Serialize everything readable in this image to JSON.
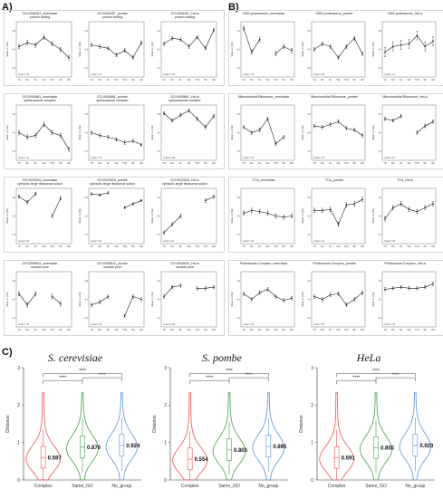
{
  "labels": {
    "a": "A)",
    "b": "B)",
    "c": "C)"
  },
  "panel_a_groups": [
    {
      "charts": [
        {
          "title": [
            "GO:0006457_cerevisiae",
            "protein folding"
          ],
          "n": "model = 33",
          "values": [
            0.55,
            0.62,
            0.58,
            0.72,
            0.6,
            0.5,
            0.35
          ],
          "err": [
            0.04,
            0.04,
            0.04,
            0.04,
            0.04,
            0.04,
            0.04
          ]
        },
        {
          "title": [
            "GO:0006457_pombe",
            "protein folding"
          ],
          "n": "model = 74",
          "values": [
            0.58,
            0.55,
            0.52,
            0.4,
            0.48,
            0.35,
            0.62
          ],
          "err": [
            0.03,
            0.03,
            0.03,
            0.03,
            0.03,
            0.03,
            0.03
          ]
        },
        {
          "title": [
            "GO:0006457_HeLa",
            "protein folding"
          ],
          "n": "model = 103",
          "values": [
            0.6,
            0.7,
            0.68,
            0.55,
            0.72,
            0.52,
            0.85
          ],
          "err": [
            0.03,
            0.03,
            0.03,
            0.03,
            0.03,
            0.03,
            0.03
          ]
        }
      ]
    },
    {
      "charts": [
        {
          "title": [
            "GO:0005681_cerevisiae",
            "spliceosomal complex"
          ],
          "n": "model = 44",
          "values": [
            0.5,
            0.42,
            0.45,
            0.65,
            0.5,
            0.45,
            0.2
          ],
          "err": [
            0.04,
            0.04,
            0.04,
            0.04,
            0.04,
            0.04,
            0.04
          ]
        },
        {
          "title": [
            "GO:0005681_pombe",
            "spliceosomal complex"
          ],
          "n": "model = 79",
          "values": [
            0.5,
            0.45,
            0.42,
            0.38,
            0.32,
            0.35,
            0.28
          ],
          "err": [
            0.03,
            0.03,
            0.03,
            0.03,
            0.03,
            0.03,
            0.03
          ]
        },
        {
          "title": [
            "GO:0005681_HeLa",
            "spliceosomal complex"
          ],
          "n": "model = 166",
          "values": [
            0.85,
            0.72,
            0.82,
            0.9,
            0.75,
            0.6,
            0.8
          ],
          "err": [
            0.03,
            0.03,
            0.03,
            0.03,
            0.03,
            0.03,
            0.03
          ]
        }
      ]
    },
    {
      "charts": [
        {
          "title": [
            "GO:0022625_cerevisiae",
            "cytosolic large ribosomal subun"
          ],
          "n": "model = 83",
          "values": [
            0.85,
            0.75,
            0.9,
            null,
            0.5,
            0.82,
            null
          ],
          "err": [
            0.03,
            0.03,
            0.03,
            0,
            0.03,
            0.03,
            0
          ]
        },
        {
          "title": [
            "GO:0022625_pombe",
            "cytosolic large ribosomal subun"
          ],
          "n": "model = 91",
          "values": [
            0.9,
            0.88,
            0.92,
            null,
            0.65,
            0.72,
            0.78
          ],
          "err": [
            0.02,
            0.02,
            0.02,
            0,
            0.02,
            0.02,
            0.02
          ]
        },
        {
          "title": [
            "GO:0022625_HeLa",
            "cytosolic large ribosomal subun"
          ],
          "n": "model = 64",
          "values": [
            0.2,
            0.35,
            0.5,
            null,
            null,
            0.78,
            0.85
          ],
          "err": [
            0.03,
            0.03,
            0.03,
            0,
            0,
            0.03,
            0.03
          ]
        }
      ]
    },
    {
      "charts": [
        {
          "title": [
            "GO:0005643_cerevisiae",
            "nuclear pore"
          ],
          "n": "model = 19",
          "values": [
            0.6,
            0.4,
            0.6,
            null,
            0.55,
            0.42,
            null
          ],
          "err": [
            0.04,
            0.04,
            0.04,
            0,
            0.04,
            0.04,
            0
          ]
        },
        {
          "title": [
            "GO:0005643_pombe",
            "nuclear pore"
          ],
          "n": "model = 32",
          "values": [
            0.4,
            0.45,
            0.55,
            null,
            0.2,
            0.55,
            0.5
          ],
          "err": [
            0.03,
            0.03,
            0.03,
            0,
            0.03,
            0.03,
            0.03
          ]
        },
        {
          "title": [
            "GO:0005643_HeLa",
            "nuclear pore"
          ],
          "n": "model = 124",
          "values": [
            0.55,
            0.72,
            0.75,
            null,
            0.7,
            0.7,
            0.72
          ],
          "err": [
            0.03,
            0.03,
            0.03,
            0,
            0.03,
            0.03,
            0.03
          ]
        }
      ]
    }
  ],
  "panel_b_groups": [
    {
      "charts": [
        {
          "title": [
            "VMS-proteasome_cerevisiae"
          ],
          "n": "model = 43",
          "values": [
            0.88,
            0.45,
            0.68,
            null,
            0.42,
            0.55,
            0.48
          ],
          "err": [
            0.04,
            0.04,
            0.04,
            0,
            0.04,
            0.04,
            0.04
          ]
        },
        {
          "title": [
            "VMS-proteasome_pombe"
          ],
          "n": "model = 45",
          "values": [
            0.5,
            0.6,
            0.55,
            0.35,
            0.55,
            0.7,
            0.42
          ],
          "err": [
            0.03,
            0.03,
            0.03,
            0.03,
            0.03,
            0.03,
            0.03
          ]
        },
        {
          "title": [
            "VMS-proteasome_HeLa"
          ],
          "n": "model = 13",
          "values": [
            0.45,
            0.55,
            0.58,
            0.6,
            0.75,
            0.55,
            0.65
          ],
          "err": [
            0.08,
            0.08,
            0.08,
            0.08,
            0.08,
            0.08,
            0.08
          ]
        }
      ]
    },
    {
      "charts": [
        {
          "title": [
            "Mitochondrial.Ribosome_cerevisiae"
          ],
          "n": "model = 63",
          "values": [
            0.6,
            0.5,
            0.55,
            0.75,
            0.3,
            0.42,
            null
          ],
          "err": [
            0.03,
            0.03,
            0.03,
            0.03,
            0.03,
            0.03,
            0
          ]
        },
        {
          "title": [
            "Mitochondrial.Ribosome_pombe"
          ],
          "n": "model = 78",
          "values": [
            0.62,
            0.6,
            0.65,
            0.7,
            0.58,
            0.55,
            0.45
          ],
          "err": [
            0.03,
            0.03,
            0.03,
            0.03,
            0.03,
            0.03,
            0.03
          ]
        },
        {
          "title": [
            "Mitochondrial.Ribosome_HeLa"
          ],
          "n": "model = 57",
          "values": [
            0.75,
            0.72,
            0.8,
            null,
            0.5,
            0.62,
            0.7
          ],
          "err": [
            0.03,
            0.03,
            0.03,
            0,
            0.03,
            0.03,
            0.03
          ]
        }
      ]
    },
    {
      "charts": [
        {
          "title": [
            "TCA_cerevisiae"
          ],
          "n": "model = 30",
          "values": [
            0.55,
            0.6,
            0.58,
            0.55,
            0.5,
            0.48,
            0.5
          ],
          "err": [
            0.04,
            0.04,
            0.04,
            0.04,
            0.04,
            0.04,
            0.04
          ]
        },
        {
          "title": [
            "TCA_pombe"
          ],
          "n": "model = 23",
          "values": [
            0.6,
            0.6,
            0.62,
            0.35,
            0.7,
            0.72,
            0.8
          ],
          "err": [
            0.04,
            0.04,
            0.04,
            0.04,
            0.04,
            0.04,
            0.04
          ]
        },
        {
          "title": [
            "TCA_HeLa"
          ],
          "n": "model = 34",
          "values": [
            0.45,
            0.65,
            0.72,
            0.62,
            0.58,
            0.65,
            0.72
          ],
          "err": [
            0.04,
            0.04,
            0.04,
            0.04,
            0.04,
            0.04,
            0.04
          ]
        }
      ]
    },
    {
      "charts": [
        {
          "title": [
            "Proteasome.Complex_cerevisiae"
          ],
          "n": "model = 46",
          "values": [
            0.6,
            0.5,
            0.62,
            0.68,
            0.55,
            0.48,
            0.52
          ],
          "err": [
            0.03,
            0.03,
            0.03,
            0.03,
            0.03,
            0.03,
            0.03
          ]
        },
        {
          "title": [
            "Proteasome.Complex_pombe"
          ],
          "n": "model = 68",
          "values": [
            0.55,
            0.5,
            0.58,
            0.6,
            0.4,
            0.5,
            0.62
          ],
          "err": [
            0.03,
            0.03,
            0.03,
            0.03,
            0.03,
            0.03,
            0.03
          ]
        },
        {
          "title": [
            "Proteasome.Complex_HeLa"
          ],
          "n": "model = 62",
          "values": [
            0.68,
            0.7,
            0.72,
            0.7,
            0.7,
            0.72,
            0.78
          ],
          "err": [
            0.03,
            0.03,
            0.03,
            0.03,
            0.03,
            0.03,
            0.03
          ]
        }
      ]
    }
  ],
  "mini_axis": {
    "ylabel": "Mean +/- (SE)",
    "x_ticks": [
      "YR",
      "RG",
      "RL",
      "WA",
      "TUN",
      "PE",
      "WA"
    ],
    "y_ticks": [
      "0.2",
      "0.6",
      "0.8"
    ]
  },
  "chart_data": {
    "type": "violin",
    "ylabel": "Distance",
    "ylim": [
      0,
      3
    ],
    "y_ticks": [
      "0",
      "1",
      "2",
      "3"
    ],
    "categories": [
      "Complex",
      "Same_GO",
      "No_group"
    ],
    "colors": [
      "#ef5350",
      "#43a047",
      "#5c8fe0"
    ],
    "significance": "****",
    "panels": [
      {
        "title": "S. cerevisiae",
        "medians": [
          0.597,
          0.876,
          0.924
        ]
      },
      {
        "title": "S. pombe",
        "medians": [
          0.554,
          0.803,
          0.895
        ]
      },
      {
        "title": "HeLa",
        "medians": [
          0.591,
          0.855,
          0.923
        ]
      }
    ]
  }
}
